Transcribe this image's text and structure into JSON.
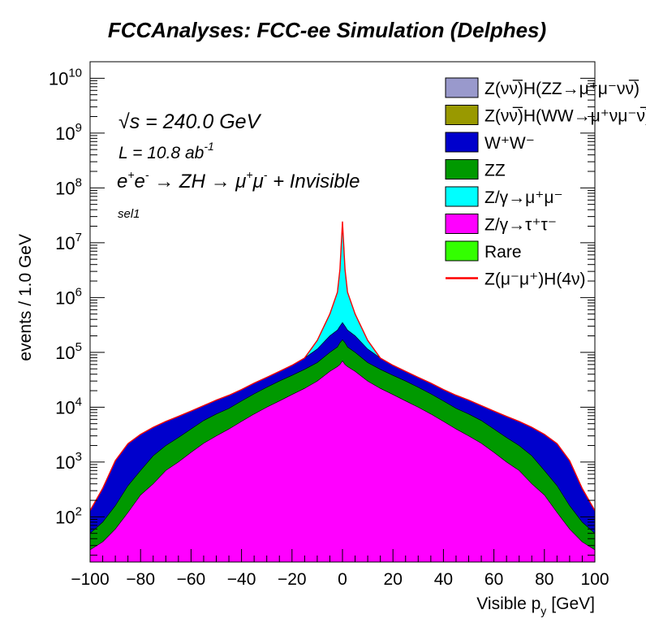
{
  "chart_data": {
    "type": "area",
    "title": "FCCAnalyses: FCC-ee Simulation (Delphes)",
    "xlabel": "Visible p",
    "xlabel_sub": "y",
    "xlabel_unit": "[GeV]",
    "ylabel": "events / 1.0 GeV",
    "xlim": [
      -100,
      100
    ],
    "ylim": [
      15,
      20000000000
    ],
    "yscale": "log",
    "xticks": [
      "−100",
      "−80",
      "−60",
      "−40",
      "−20",
      "0",
      "20",
      "40",
      "60",
      "80",
      "100"
    ],
    "xtick_values": [
      -100,
      -80,
      -60,
      -40,
      -20,
      0,
      20,
      40,
      60,
      80,
      100
    ],
    "ytick_exponents": [
      "2",
      "3",
      "4",
      "5",
      "6",
      "7",
      "8",
      "9",
      "10"
    ],
    "ytick_values": [
      100,
      1000,
      10000,
      100000,
      1000000,
      10000000,
      100000000,
      1000000000,
      10000000000
    ],
    "annotations": {
      "energy_sqrt": "√s",
      "energy_rest": " = 240.0 GeV",
      "lumi": "L = 10.8 ab",
      "lumi_sup": "-1",
      "process_e": "e",
      "process_mid": " → ZH → μ",
      "process_end": " + Invisible",
      "sup_plus": "+",
      "sup_minus": "-",
      "selection": "sel1"
    },
    "legend": {
      "placement": "top-right",
      "entries": [
        {
          "label": "Z(νν̅)H(ZZ→μ⁺μ⁻νν̅)",
          "color": "#9999cc",
          "kind": "fill"
        },
        {
          "label": "Z(νν̅)H(WW→μ⁺νμ⁻ν̅)",
          "color": "#999900",
          "kind": "fill"
        },
        {
          "label": "W⁺W⁻",
          "color": "#0000cc",
          "kind": "fill"
        },
        {
          "label": "ZZ",
          "color": "#009900",
          "kind": "fill"
        },
        {
          "label": "Z/γ→μ⁺μ⁻",
          "color": "#00ffff",
          "kind": "fill"
        },
        {
          "label": "Z/γ→τ⁺τ⁻",
          "color": "#ff00ff",
          "kind": "fill"
        },
        {
          "label": "Rare",
          "color": "#33ff00",
          "kind": "fill"
        },
        {
          "label": "Z(μ⁻μ⁺)H(4ν)",
          "color": "#ff0000",
          "kind": "line"
        }
      ]
    },
    "stack_x": [
      -100,
      -95,
      -90,
      -85,
      -80,
      -75,
      -70,
      -65,
      -60,
      -55,
      -50,
      -45,
      -40,
      -35,
      -30,
      -25,
      -20,
      -15,
      -10,
      -5,
      -2,
      -1,
      0,
      1,
      2,
      5,
      10,
      15,
      20,
      25,
      30,
      35,
      40,
      45,
      50,
      55,
      60,
      65,
      70,
      75,
      80,
      85,
      90,
      95,
      100
    ],
    "series": [
      {
        "name": "Z/γ→τ⁺τ⁻",
        "color": "#ff00ff",
        "values": [
          25,
          35,
          60,
          120,
          250,
          400,
          700,
          1000,
          1500,
          2200,
          3000,
          4000,
          5500,
          7500,
          10000,
          13000,
          17000,
          22000,
          30000,
          45000,
          55000,
          60000,
          70000,
          60000,
          55000,
          45000,
          30000,
          22000,
          17000,
          13000,
          10000,
          7500,
          5500,
          4000,
          3000,
          2200,
          1500,
          1000,
          700,
          400,
          250,
          120,
          60,
          35,
          25
        ]
      },
      {
        "name": "ZZ",
        "color": "#009900",
        "values": [
          25,
          45,
          100,
          250,
          450,
          900,
          1300,
          1800,
          2500,
          3500,
          4500,
          5500,
          7500,
          10000,
          13000,
          17000,
          21000,
          27000,
          35000,
          55000,
          70000,
          90000,
          100000,
          90000,
          70000,
          55000,
          35000,
          27000,
          21000,
          17000,
          13000,
          10000,
          7500,
          5500,
          4500,
          3500,
          2500,
          1800,
          1300,
          900,
          450,
          250,
          100,
          45,
          25
        ]
      },
      {
        "name": "W⁺W⁻",
        "color": "#0000cc",
        "values": [
          80,
          250,
          900,
          1800,
          2500,
          3000,
          3500,
          4000,
          4500,
          5000,
          6000,
          7000,
          8000,
          10000,
          12000,
          15000,
          20000,
          30000,
          50000,
          100000,
          130000,
          150000,
          180000,
          150000,
          130000,
          100000,
          50000,
          30000,
          20000,
          15000,
          12000,
          10000,
          8000,
          7000,
          6000,
          5000,
          4500,
          4000,
          3500,
          3000,
          2500,
          1800,
          900,
          250,
          80
        ]
      },
      {
        "name": "Z/γ→μ⁺μ⁻",
        "color": "#00ffff",
        "values": [
          0,
          0,
          0,
          0,
          0,
          0,
          0,
          0,
          0,
          0,
          0,
          0,
          0,
          0,
          0,
          0,
          0,
          0,
          50000,
          300000,
          1000000,
          3000000,
          22000000,
          3000000,
          1000000,
          300000,
          50000,
          0,
          0,
          0,
          0,
          0,
          0,
          0,
          0,
          0,
          0,
          0,
          0,
          0,
          0,
          0,
          0,
          0,
          0
        ]
      },
      {
        "name": "Rare",
        "color": "#33ff00",
        "values": [
          0,
          0,
          0,
          0,
          0,
          0,
          0,
          0,
          0,
          0,
          0,
          0,
          0,
          0,
          0,
          0,
          0,
          0,
          0,
          0,
          0,
          0,
          2000000,
          0,
          0,
          0,
          0,
          0,
          0,
          0,
          0,
          0,
          0,
          0,
          0,
          0,
          0,
          0,
          0,
          0,
          0,
          0,
          0,
          0,
          0
        ]
      }
    ]
  }
}
